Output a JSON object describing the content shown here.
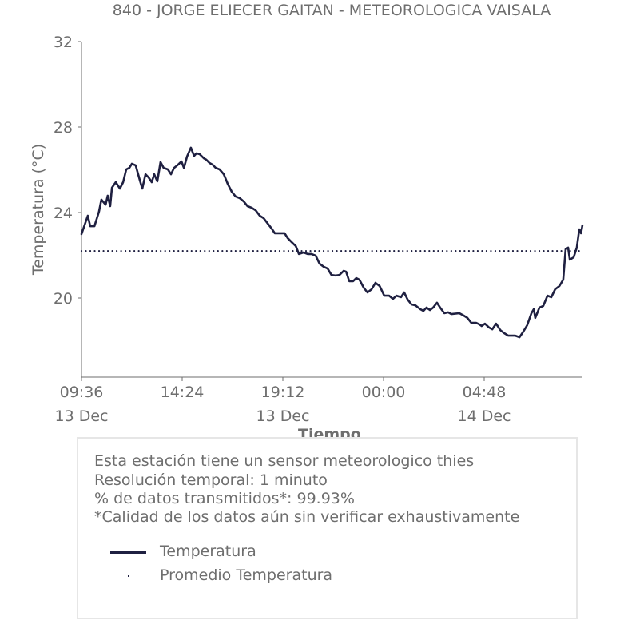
{
  "chart_data": {
    "type": "line",
    "title": "840 - JORGE ELIECER GAITAN - METEOROLOGICA VAISALA",
    "xlabel": "Tiempo",
    "ylabel": "Temperatura (°C)",
    "x_unit": "minutes since 09:36 13 Dec",
    "xlim": [
      0,
      1433
    ],
    "ylim": [
      16.3,
      32
    ],
    "yticks": [
      {
        "value": 20,
        "label": "20"
      },
      {
        "value": 24,
        "label": "24"
      },
      {
        "value": 28,
        "label": "28"
      },
      {
        "value": 32,
        "label": "32"
      }
    ],
    "xticks": [
      {
        "value": 0,
        "time": "09:36",
        "date": "13 Dec"
      },
      {
        "value": 288,
        "time": "14:24",
        "date": ""
      },
      {
        "value": 576,
        "time": "19:12",
        "date": "13 Dec"
      },
      {
        "value": 864,
        "time": "00:00",
        "date": ""
      },
      {
        "value": 1152,
        "time": "04:48",
        "date": "14 Dec"
      }
    ],
    "grid": false,
    "legend_placement": "bottom",
    "series": [
      {
        "name": "Temperatura",
        "color": "#1f2041",
        "style": "solid",
        "x": [
          0,
          18,
          25,
          37,
          50,
          57,
          69,
          75,
          82,
          87,
          98,
          110,
          119,
          128,
          137,
          144,
          155,
          160,
          167,
          174,
          183,
          192,
          201,
          208,
          217,
          226,
          235,
          247,
          256,
          265,
          274,
          286,
          293,
          302,
          313,
          322,
          329,
          338,
          350,
          357,
          366,
          375,
          384,
          395,
          407,
          418,
          430,
          441,
          453,
          464,
          475,
          487,
          498,
          510,
          521,
          533,
          544,
          553,
          567,
          581,
          590,
          601,
          613,
          622,
          635,
          647,
          658,
          670,
          681,
          693,
          704,
          715,
          727,
          738,
          750,
          757,
          766,
          777,
          786,
          795,
          807,
          818,
          830,
          841,
          853,
          866,
          880,
          891,
          901,
          914,
          923,
          933,
          944,
          955,
          969,
          978,
          987,
          997,
          1006,
          1017,
          1026,
          1038,
          1049,
          1058,
          1081,
          1093,
          1104,
          1115,
          1129,
          1138,
          1145,
          1154,
          1166,
          1175,
          1186,
          1198,
          1209,
          1221,
          1232,
          1241,
          1253,
          1264,
          1275,
          1287,
          1294,
          1298,
          1310,
          1321,
          1333,
          1344,
          1355,
          1367,
          1378,
          1385,
          1392,
          1397,
          1408,
          1417,
          1424,
          1429,
          1433
        ],
        "values": [
          22.99,
          23.85,
          23.36,
          23.36,
          24.04,
          24.6,
          24.37,
          24.79,
          24.3,
          25.16,
          25.42,
          25.12,
          25.42,
          26.02,
          26.09,
          26.28,
          26.21,
          25.91,
          25.5,
          25.12,
          25.79,
          25.64,
          25.42,
          25.79,
          25.46,
          26.36,
          26.09,
          26.02,
          25.79,
          26.09,
          26.21,
          26.39,
          26.09,
          26.62,
          27.03,
          26.65,
          26.77,
          26.73,
          26.54,
          26.47,
          26.32,
          26.24,
          26.09,
          26.02,
          25.79,
          25.35,
          24.97,
          24.75,
          24.67,
          24.52,
          24.3,
          24.22,
          24.11,
          23.85,
          23.74,
          23.48,
          23.25,
          23.03,
          23.03,
          23.03,
          22.8,
          22.62,
          22.43,
          22.06,
          22.13,
          22.06,
          22.06,
          21.98,
          21.61,
          21.46,
          21.38,
          21.08,
          21.05,
          21.08,
          21.27,
          21.23,
          20.79,
          20.79,
          20.93,
          20.86,
          20.49,
          20.26,
          20.41,
          20.71,
          20.56,
          20.11,
          20.11,
          19.96,
          20.11,
          20.04,
          20.26,
          19.93,
          19.7,
          19.66,
          19.48,
          19.4,
          19.55,
          19.44,
          19.55,
          19.78,
          19.55,
          19.29,
          19.33,
          19.25,
          19.29,
          19.18,
          19.07,
          18.84,
          18.84,
          18.77,
          18.69,
          18.8,
          18.62,
          18.54,
          18.8,
          18.5,
          18.36,
          18.24,
          18.24,
          18.24,
          18.17,
          18.43,
          18.73,
          19.29,
          19.48,
          19.07,
          19.55,
          19.63,
          20.11,
          20.04,
          20.41,
          20.56,
          20.86,
          22.28,
          22.36,
          21.79,
          21.91,
          22.36,
          23.21,
          23.03,
          23.4
        ]
      },
      {
        "name": "Promedio Temperatura",
        "color": "#1f2041",
        "style": "dotted",
        "value": 22.2
      }
    ]
  },
  "info": {
    "lines": [
      "Esta estación tiene un sensor meteorologico thies",
      "Resolución temporal: 1 minuto",
      "% de datos transmitidos*: 99.93%",
      "*Calidad de los datos aún sin verificar exhaustivamente"
    ]
  },
  "legend": {
    "items": [
      {
        "label": "Temperatura"
      },
      {
        "label": "Promedio Temperatura"
      }
    ]
  },
  "colors": {
    "line": "#1f2041",
    "text": "#6e6e6e",
    "axis": "#6e6e6e",
    "legend_border": "#e6e6e6"
  }
}
